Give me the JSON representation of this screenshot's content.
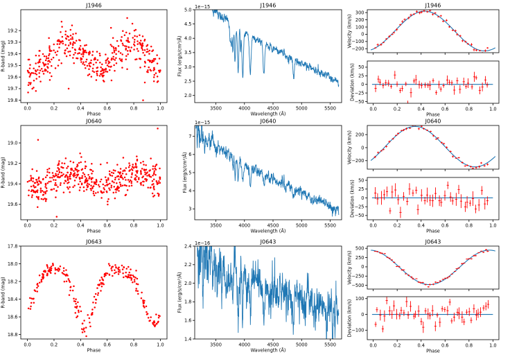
{
  "figure": {
    "colors": {
      "points": "#ff0000",
      "line": "#1f77b4",
      "axes": "#000000"
    }
  },
  "chart_data": [
    {
      "id": "lc_j1946",
      "type": "scatter",
      "title": "J1946",
      "xlabel": "Phase",
      "ylabel": "R-band (mag)",
      "xlim": [
        -0.05,
        1.05
      ],
      "ylim": [
        19.82,
        19.02
      ],
      "yinverted": true,
      "xticks": [
        0.0,
        0.2,
        0.4,
        0.6,
        0.8,
        1.0
      ],
      "xtick_labels": [
        "0.0",
        "0.2",
        "0.4",
        "0.6",
        "0.8",
        "1.0"
      ],
      "yticks": [
        19.2,
        19.3,
        19.4,
        19.5,
        19.6,
        19.7,
        19.8
      ],
      "ytick_labels": [
        "19.2",
        "19.3",
        "19.4",
        "19.5",
        "19.6",
        "19.7",
        "19.8"
      ],
      "model": {
        "kind": "lightcurve",
        "n": 420,
        "seed": 11,
        "base": 19.42,
        "amp2": 0.12,
        "amp1": 0.02,
        "phase_shift": 0.04,
        "noise": 0.075,
        "outliers": [
          [
            0.31,
            19.7
          ],
          [
            0.87,
            19.8
          ]
        ]
      }
    },
    {
      "id": "sp_j1946",
      "type": "line",
      "title": "J1946",
      "xlabel": "Wavelength (Å)",
      "ylabel": "Flux (erg/s/cm²/Å)",
      "offset_label": "1e−15",
      "xlim": [
        3130,
        5700
      ],
      "ylim": [
        1.75,
        5.0
      ],
      "xticks": [
        3500,
        4000,
        4500,
        5000,
        5500
      ],
      "xtick_labels": [
        "3500",
        "4000",
        "4500",
        "5000",
        "5500"
      ],
      "yticks": [
        2.0,
        2.5,
        3.0,
        3.5,
        4.0,
        4.5,
        5.0
      ],
      "ytick_labels": [
        "2.0",
        "2.5",
        "3.0",
        "3.5",
        "4.0",
        "4.5",
        "5.0"
      ],
      "model": {
        "kind": "spectrum",
        "seed": 21,
        "start": 3150,
        "end": 5650,
        "step": 3,
        "f_start": 5.6,
        "f_end": 2.45,
        "power": 0.9,
        "noise": 0.06,
        "lines": [
          [
            3750,
            0.6,
            8
          ],
          [
            3771,
            0.7,
            8
          ],
          [
            3798,
            0.9,
            9
          ],
          [
            3835,
            1.2,
            10
          ],
          [
            3889,
            1.5,
            12
          ],
          [
            3933,
            0.6,
            6
          ],
          [
            3970,
            1.5,
            13
          ],
          [
            4101,
            1.3,
            14
          ],
          [
            4340,
            1.1,
            14
          ],
          [
            4861,
            0.7,
            12
          ]
        ]
      }
    },
    {
      "id": "rv_j1946",
      "type": "scatter",
      "title": "J1946",
      "xlabel": "",
      "ylabel": "Velocity (km/s)",
      "xlim": [
        -0.05,
        1.05
      ],
      "ylim": [
        -255,
        340
      ],
      "xticks": [
        0.0,
        0.2,
        0.4,
        0.6,
        0.8,
        1.0
      ],
      "xtick_labels": [
        "",
        "",
        "",
        "",
        "",
        ""
      ],
      "yticks": [
        -200,
        -100,
        0,
        100,
        200,
        300
      ],
      "ytick_labels": [
        "−200",
        "−100",
        "0",
        "100",
        "200",
        "300"
      ],
      "model": {
        "kind": "velocity",
        "n": 42,
        "seed": 31,
        "K": 275,
        "gamma": 45,
        "phi0": 0.18,
        "noise": 18,
        "err": 14
      }
    },
    {
      "id": "res_j1946",
      "type": "scatter",
      "title": "",
      "xlabel": "Phase",
      "ylabel": "Deviation (km/s)",
      "xlim": [
        -0.05,
        1.05
      ],
      "ylim": [
        -55,
        68
      ],
      "xticks": [
        0.0,
        0.2,
        0.4,
        0.6,
        0.8,
        1.0
      ],
      "xtick_labels": [
        "0.0",
        "0.2",
        "0.4",
        "0.6",
        "0.8",
        "1.0"
      ],
      "yticks": [
        -50,
        -25,
        0,
        25,
        50
      ],
      "ytick_labels": [
        "−50",
        "−25",
        "0",
        "25",
        "50"
      ],
      "model": {
        "kind": "residual",
        "n": 42,
        "seed": 41,
        "noise": 15,
        "err": 10
      }
    },
    {
      "id": "lc_j0640",
      "type": "scatter",
      "title": "J0640",
      "xlabel": "Phase",
      "ylabel": "R-band (mag)",
      "xlim": [
        -0.05,
        1.05
      ],
      "ylim": [
        19.75,
        18.83
      ],
      "yinverted": true,
      "xticks": [
        0.0,
        0.2,
        0.4,
        0.6,
        0.8,
        1.0
      ],
      "xtick_labels": [
        "0.0",
        "0.2",
        "0.4",
        "0.6",
        "0.8",
        "1.0"
      ],
      "yticks": [
        19.0,
        19.2,
        19.4,
        19.6
      ],
      "ytick_labels": [
        "19.0",
        "19.2",
        "19.4",
        "19.6"
      ],
      "model": {
        "kind": "lightcurve",
        "n": 480,
        "seed": 12,
        "base": 19.36,
        "amp2": 0.07,
        "amp1": 0.0,
        "phase_shift": 0.08,
        "noise": 0.075,
        "outliers": [
          [
            0.08,
            18.97
          ],
          [
            0.98,
            18.86
          ],
          [
            0.22,
            19.72
          ]
        ]
      }
    },
    {
      "id": "sp_j0640",
      "type": "line",
      "title": "J0640",
      "xlabel": "Wavelength (Å)",
      "ylabel": "Flux (erg/s/cm²/Å)",
      "offset_label": "1e−15",
      "xlim": [
        3130,
        5700
      ],
      "ylim": [
        2.4,
        7.6
      ],
      "xticks": [
        3500,
        4000,
        4500,
        5000,
        5500
      ],
      "xtick_labels": [
        "3500",
        "4000",
        "4500",
        "5000",
        "5500"
      ],
      "yticks": [
        3,
        4,
        5,
        6,
        7
      ],
      "ytick_labels": [
        "3",
        "4",
        "5",
        "6",
        "7"
      ],
      "model": {
        "kind": "spectrum",
        "seed": 22,
        "start": 3150,
        "end": 5650,
        "step": 3,
        "f_start": 7.4,
        "f_end": 2.75,
        "power": 0.8,
        "noise": 0.13,
        "lines": [
          [
            3798,
            0.6,
            8
          ],
          [
            3835,
            0.8,
            9
          ],
          [
            3889,
            1.0,
            11
          ],
          [
            3970,
            1.0,
            12
          ],
          [
            4101,
            0.9,
            12
          ],
          [
            4340,
            0.8,
            12
          ],
          [
            4861,
            0.5,
            10
          ]
        ]
      }
    },
    {
      "id": "rv_j0640",
      "type": "scatter",
      "title": "J0640",
      "xlabel": "",
      "ylabel": "Velocity (km/s)",
      "xlim": [
        -0.05,
        1.05
      ],
      "ylim": [
        -330,
        340
      ],
      "xticks": [
        0.0,
        0.2,
        0.4,
        0.6,
        0.8,
        1.0
      ],
      "xtick_labels": [
        "",
        "",
        "",
        "",
        "",
        ""
      ],
      "yticks": [
        -200,
        0,
        200
      ],
      "ytick_labels": [
        "−200",
        "0",
        "200"
      ],
      "model": {
        "kind": "velocity",
        "n": 40,
        "seed": 32,
        "K": 310,
        "gamma": 15,
        "phi0": 0.1,
        "noise": 18,
        "err": 14
      }
    },
    {
      "id": "res_j0640",
      "type": "scatter",
      "title": "",
      "xlabel": "Phase",
      "ylabel": "Deviation (km/s)",
      "xlim": [
        -0.05,
        1.05
      ],
      "ylim": [
        -62,
        58
      ],
      "xticks": [
        0.0,
        0.2,
        0.4,
        0.6,
        0.8,
        1.0
      ],
      "xtick_labels": [
        "0.0",
        "0.2",
        "0.4",
        "0.6",
        "0.8",
        "1.0"
      ],
      "yticks": [
        -50,
        -25,
        0,
        25,
        50
      ],
      "ytick_labels": [
        "−50",
        "−25",
        "0",
        "25",
        "50"
      ],
      "model": {
        "kind": "residual",
        "n": 40,
        "seed": 42,
        "noise": 18,
        "err": 14
      }
    },
    {
      "id": "lc_j0643",
      "type": "scatter",
      "title": "J0643",
      "xlabel": "Phase",
      "ylabel": "R-band (mag)",
      "xlim": [
        -0.05,
        1.05
      ],
      "ylim": [
        18.85,
        17.8
      ],
      "yinverted": true,
      "xticks": [
        0.0,
        0.2,
        0.4,
        0.6,
        0.8,
        1.0
      ],
      "xtick_labels": [
        "0.0",
        "0.2",
        "0.4",
        "0.6",
        "0.8",
        "1.0"
      ],
      "yticks": [
        17.8,
        18.0,
        18.2,
        18.4,
        18.6,
        18.8
      ],
      "ytick_labels": [
        "17.8",
        "18.0",
        "18.2",
        "18.4",
        "18.6",
        "18.8"
      ],
      "model": {
        "kind": "eclipse",
        "n": 250,
        "seed": 13,
        "base": 18.06,
        "depth": 0.72,
        "width": 0.075,
        "center": 0.43,
        "depth2": 0.55,
        "center2": 0.95,
        "hump": 0.1,
        "noise": 0.04
      }
    },
    {
      "id": "sp_j0643",
      "type": "line",
      "title": "J0643",
      "xlabel": "Wavelength (Å)",
      "ylabel": "Flux (erg/s/cm²/Å)",
      "offset_label": "1e−16",
      "xlim": [
        3130,
        5700
      ],
      "ylim": [
        1.4,
        2.4
      ],
      "xticks": [
        3500,
        4000,
        4500,
        5000,
        5500
      ],
      "xtick_labels": [
        "3500",
        "4000",
        "4500",
        "5000",
        "5500"
      ],
      "yticks": [
        1.4,
        1.6,
        1.8,
        2.0,
        2.2,
        2.4
      ],
      "ytick_labels": [
        "1.4",
        "1.6",
        "1.8",
        "2.0",
        "2.2",
        "2.4"
      ],
      "model": {
        "kind": "spectrum",
        "seed": 23,
        "start": 3150,
        "end": 5650,
        "step": 3,
        "f_start": 2.3,
        "f_end": 1.6,
        "power": 0.7,
        "noise": 0.09,
        "lines": [
          [
            3270,
            0.4,
            6
          ],
          [
            3798,
            0.3,
            8
          ],
          [
            3889,
            0.4,
            10
          ],
          [
            3970,
            0.45,
            11
          ],
          [
            4101,
            0.35,
            12
          ],
          [
            4340,
            0.35,
            12
          ],
          [
            4861,
            0.2,
            10
          ]
        ]
      }
    },
    {
      "id": "rv_j0643",
      "type": "scatter",
      "title": "J0643",
      "xlabel": "",
      "ylabel": "Velocity (km/s)",
      "xlim": [
        -0.05,
        1.05
      ],
      "ylim": [
        -600,
        560
      ],
      "xticks": [
        0.0,
        0.2,
        0.4,
        0.6,
        0.8,
        1.0
      ],
      "xtick_labels": [
        "",
        "",
        "",
        "",
        "",
        ""
      ],
      "yticks": [
        -500,
        -250,
        0,
        250,
        500
      ],
      "ytick_labels": [
        "−500",
        "−250",
        "0",
        "250",
        "500"
      ],
      "model": {
        "kind": "velocity",
        "n": 48,
        "seed": 33,
        "K": -465,
        "gamma": -15,
        "phi0": 0.22,
        "noise": 25,
        "err": 18
      }
    },
    {
      "id": "res_j0643",
      "type": "scatter",
      "title": "",
      "xlabel": "Phase",
      "ylabel": "Deviation (km/s)",
      "xlim": [
        -0.05,
        1.05
      ],
      "ylim": [
        -160,
        112
      ],
      "xticks": [
        0.0,
        0.2,
        0.4,
        0.6,
        0.8,
        1.0
      ],
      "xtick_labels": [
        "0.0",
        "0.2",
        "0.4",
        "0.6",
        "0.8",
        "1.0"
      ],
      "yticks": [
        -100,
        0,
        100
      ],
      "ytick_labels": [
        "−100",
        "0",
        "100"
      ],
      "model": {
        "kind": "residual",
        "n": 48,
        "seed": 43,
        "noise": 40,
        "err": 25
      }
    }
  ]
}
